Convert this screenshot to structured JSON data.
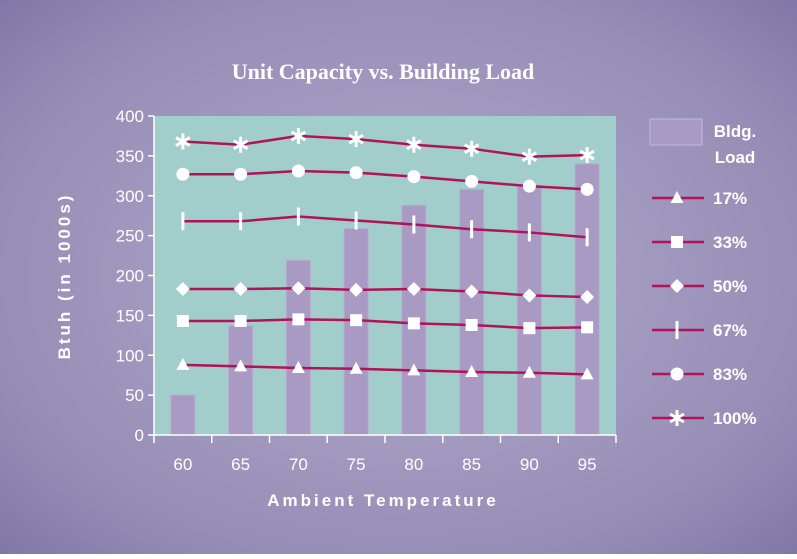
{
  "chart_data": {
    "type": "bar",
    "title": "Unit Capacity vs. Building Load",
    "xlabel": "Ambient Temperature",
    "ylabel": "Btuh (in 1000s)",
    "ylim": [
      0,
      400
    ],
    "y_ticks": [
      "0",
      "50",
      "100",
      "150",
      "200",
      "250",
      "300",
      "350",
      "400"
    ],
    "categories": [
      "60",
      "65",
      "70",
      "75",
      "80",
      "85",
      "90",
      "95"
    ],
    "bar_series": {
      "name_line1": "Bldg.",
      "name_line2": "Load",
      "values": [
        50,
        137,
        219,
        259,
        288,
        308,
        313,
        340
      ]
    },
    "series": [
      {
        "name": "17%",
        "marker": "triangle",
        "values": [
          88,
          86,
          84,
          83,
          81,
          79,
          78,
          76
        ]
      },
      {
        "name": "33%",
        "marker": "square",
        "values": [
          143,
          143,
          145,
          144,
          140,
          138,
          134,
          135
        ]
      },
      {
        "name": "50%",
        "marker": "diamond",
        "values": [
          183,
          183,
          184,
          182,
          183,
          180,
          175,
          173
        ]
      },
      {
        "name": "67%",
        "marker": "bar",
        "values": [
          268,
          268,
          274,
          269,
          264,
          258,
          254,
          248
        ]
      },
      {
        "name": "83%",
        "marker": "circle",
        "values": [
          327,
          327,
          331,
          329,
          324,
          318,
          312,
          308
        ]
      },
      {
        "name": "100%",
        "marker": "asterisk",
        "values": [
          368,
          364,
          375,
          371,
          364,
          359,
          349,
          351
        ]
      }
    ],
    "grid": false,
    "legend_position": "right",
    "colors": {
      "background": "#8e84b0",
      "plot_area": "#a1cdca",
      "bars": "#a89ac3",
      "bar_outline": "#b8acd3",
      "lines": "#b0135a",
      "markers": "#ffffff",
      "text": "#ffffff"
    }
  }
}
